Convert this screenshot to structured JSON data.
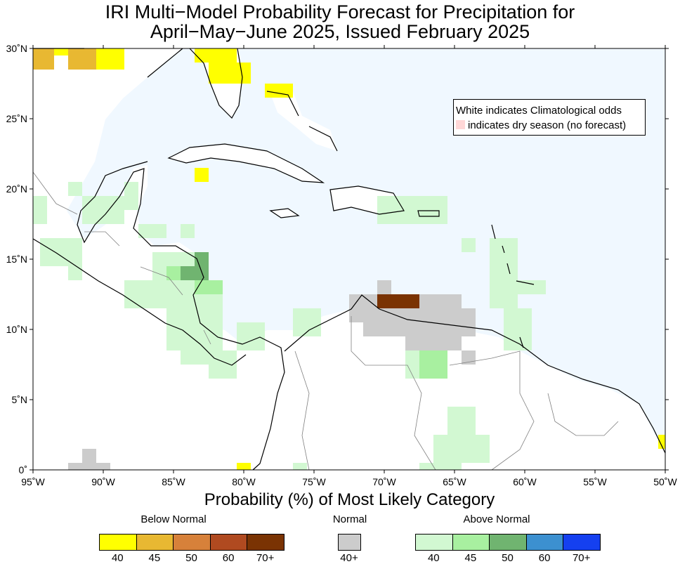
{
  "title": {
    "line1": "IRI Multi−Model Probability Forecast for Precipitation for",
    "line2": "April−May−June 2025, Issued February 2025"
  },
  "map": {
    "lon_range": [
      -95,
      -50
    ],
    "lat_range": [
      0,
      30
    ],
    "x_ticks": [
      "95˚W",
      "90˚W",
      "85˚W",
      "80˚W",
      "75˚W",
      "70˚W",
      "65˚W",
      "60˚W",
      "55˚W",
      "50˚W"
    ],
    "y_ticks": [
      "0˚",
      "5˚N",
      "10˚N",
      "15˚N",
      "20˚N",
      "25˚N",
      "30˚N"
    ],
    "ocean_color": "#f0f8ff",
    "land_color": "#ffffff",
    "coast_color": "#000000",
    "border_color": "#808080"
  },
  "note": {
    "line1": "White indicates Climatological odds",
    "line2": "indicates dry season (no forecast)",
    "dry_color": "#ffd7d7"
  },
  "legend": {
    "title": "Probability (%) of Most Likely Category",
    "below": {
      "label": "Below Normal",
      "ticks": [
        "40",
        "45",
        "50",
        "60",
        "70+"
      ],
      "colors": [
        "#ffff00",
        "#e8b832",
        "#d7813a",
        "#b04a20",
        "#7a3303"
      ]
    },
    "normal": {
      "label": "Normal",
      "ticks": [
        "40+"
      ],
      "colors": [
        "#cccccc"
      ]
    },
    "above": {
      "label": "Above Normal",
      "ticks": [
        "40",
        "45",
        "50",
        "60",
        "70+"
      ],
      "colors": [
        "#d2f8d2",
        "#a8f0a0",
        "#70b470",
        "#3c90d0",
        "#1540f0"
      ]
    }
  }
}
